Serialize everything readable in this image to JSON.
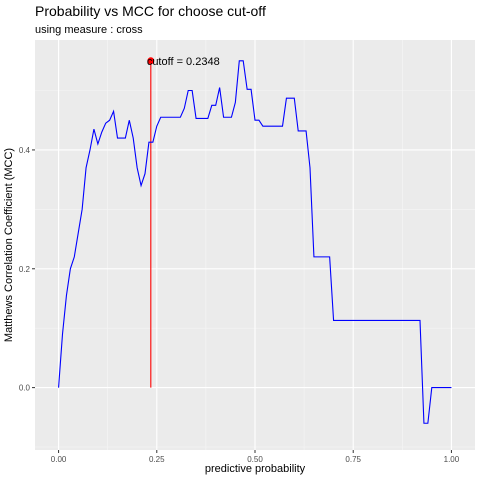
{
  "chart_data": {
    "type": "line",
    "title": "Probability vs MCC for choose cut-off",
    "subtitle": "using measure : cross",
    "xlabel": "predictive probability",
    "ylabel": "Matthews Correlation Coefficient (MCC)",
    "xlim": [
      -0.06,
      1.06
    ],
    "ylim": [
      -0.105,
      0.585
    ],
    "x_ticks": [
      0.0,
      0.25,
      0.5,
      0.75,
      1.0
    ],
    "x_tick_labels": [
      "0.00",
      "0.25",
      "0.50",
      "0.75",
      "1.00"
    ],
    "y_ticks": [
      0.0,
      0.2,
      0.4
    ],
    "y_tick_labels": [
      "0.0",
      "0.2",
      "0.4"
    ],
    "grid": true,
    "series": [
      {
        "color": "#0000ff",
        "x": [
          0.0,
          0.01,
          0.02,
          0.03,
          0.04,
          0.05,
          0.06,
          0.07,
          0.08,
          0.09,
          0.1,
          0.11,
          0.12,
          0.13,
          0.14,
          0.15,
          0.16,
          0.17,
          0.18,
          0.19,
          0.2,
          0.21,
          0.22,
          0.23,
          0.24,
          0.25,
          0.26,
          0.27,
          0.28,
          0.29,
          0.3,
          0.31,
          0.32,
          0.33,
          0.34,
          0.35,
          0.36,
          0.37,
          0.38,
          0.39,
          0.4,
          0.41,
          0.42,
          0.43,
          0.44,
          0.45,
          0.46,
          0.47,
          0.48,
          0.49,
          0.5,
          0.51,
          0.52,
          0.53,
          0.54,
          0.55,
          0.56,
          0.57,
          0.58,
          0.59,
          0.6,
          0.61,
          0.62,
          0.63,
          0.64,
          0.65,
          0.66,
          0.67,
          0.68,
          0.69,
          0.7,
          0.71,
          0.72,
          0.73,
          0.74,
          0.75,
          0.76,
          0.77,
          0.78,
          0.79,
          0.8,
          0.81,
          0.82,
          0.83,
          0.84,
          0.85,
          0.86,
          0.87,
          0.88,
          0.89,
          0.9,
          0.91,
          0.92,
          0.93,
          0.94,
          0.95,
          0.96,
          0.97,
          0.98,
          0.99,
          1.0
        ],
        "y": [
          0.0,
          0.09,
          0.155,
          0.2,
          0.22,
          0.26,
          0.3,
          0.37,
          0.4,
          0.435,
          0.41,
          0.43,
          0.445,
          0.45,
          0.465,
          0.42,
          0.42,
          0.42,
          0.45,
          0.42,
          0.37,
          0.34,
          0.36,
          0.413,
          0.413,
          0.44,
          0.455,
          0.455,
          0.455,
          0.455,
          0.455,
          0.455,
          0.47,
          0.5,
          0.5,
          0.453,
          0.453,
          0.453,
          0.453,
          0.475,
          0.475,
          0.505,
          0.455,
          0.455,
          0.455,
          0.48,
          0.55,
          0.55,
          0.502,
          0.502,
          0.45,
          0.45,
          0.44,
          0.44,
          0.44,
          0.44,
          0.44,
          0.44,
          0.487,
          0.487,
          0.487,
          0.432,
          0.432,
          0.432,
          0.37,
          0.22,
          0.22,
          0.22,
          0.22,
          0.22,
          0.113,
          0.113,
          0.113,
          0.113,
          0.113,
          0.113,
          0.113,
          0.113,
          0.113,
          0.113,
          0.113,
          0.113,
          0.113,
          0.113,
          0.113,
          0.113,
          0.113,
          0.113,
          0.113,
          0.113,
          0.113,
          0.113,
          0.113,
          -0.06,
          -0.06,
          0.0,
          0.0,
          0.0,
          0.0,
          0.0,
          0.0
        ]
      }
    ],
    "cutoff": {
      "x": 0.2348,
      "y": 0.55,
      "label": "cutoff = 0.2348",
      "color": "#ff0000",
      "line_from_y": 0.0
    },
    "colors": {
      "panel_background": "#ebebeb",
      "grid_major": "#ffffff",
      "grid_minor": "#f5f5f5"
    }
  }
}
